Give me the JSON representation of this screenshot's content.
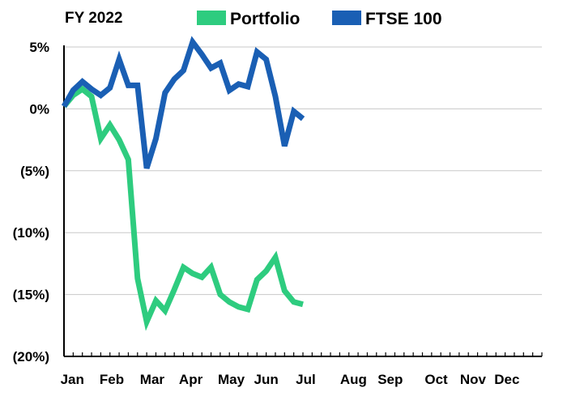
{
  "chart_data": {
    "type": "line",
    "title": "FY 2022",
    "xlabel": "",
    "ylabel": "",
    "ylim": [
      -20,
      5
    ],
    "y_ticks": [
      5,
      0,
      -5,
      -10,
      -15,
      -20
    ],
    "y_tick_labels": [
      "5%",
      "0%",
      "(5%)",
      "(10%)",
      "(15%)",
      "(20%)"
    ],
    "x_range": [
      0,
      52
    ],
    "month_labels": [
      {
        "label": "Jan",
        "week": 0.9
      },
      {
        "label": "Feb",
        "week": 5.2
      },
      {
        "label": "Mar",
        "week": 9.6
      },
      {
        "label": "Apr",
        "week": 13.8
      },
      {
        "label": "May",
        "week": 18.2
      },
      {
        "label": "Jun",
        "week": 22.0
      },
      {
        "label": "Jul",
        "week": 26.3
      },
      {
        "label": "Aug",
        "week": 31.5
      },
      {
        "label": "Sep",
        "week": 35.5
      },
      {
        "label": "Oct",
        "week": 40.5
      },
      {
        "label": "Nov",
        "week": 44.5
      },
      {
        "label": "Dec",
        "week": 48.2
      }
    ],
    "grid": true,
    "legend_position": "top",
    "series": [
      {
        "name": "Portfolio",
        "color": "#2ecc7f",
        "x": [
          0,
          1,
          2,
          3,
          4,
          5,
          6,
          7,
          8,
          9,
          10,
          11,
          12,
          13,
          14,
          15,
          16,
          17,
          18,
          19,
          20,
          21,
          22,
          23,
          24,
          25,
          26,
          27
        ],
        "y": [
          0.2,
          1.1,
          1.6,
          1.0,
          -2.4,
          -1.3,
          -2.5,
          -4.1,
          -13.7,
          -17.2,
          -15.5,
          -16.3,
          -14.6,
          -12.8,
          -13.3,
          -13.6,
          -12.8,
          -15.0,
          -15.6,
          -16.0,
          -16.2,
          -13.8,
          -13.1,
          -12.0,
          -14.7,
          -15.6,
          -15.8,
          null
        ]
      },
      {
        "name": "FTSE 100",
        "color": "#1a5fb4",
        "x": [
          0,
          1,
          2,
          3,
          4,
          5,
          6,
          7,
          8,
          9,
          10,
          11,
          12,
          13,
          14,
          15,
          16,
          17,
          18,
          19,
          20,
          21,
          22,
          23,
          24,
          25,
          26,
          27
        ],
        "y": [
          0.2,
          1.5,
          2.2,
          1.6,
          1.1,
          1.7,
          4.0,
          1.9,
          1.9,
          -4.8,
          -2.4,
          1.3,
          2.4,
          3.1,
          5.4,
          4.4,
          3.3,
          3.7,
          1.5,
          2.0,
          1.8,
          4.6,
          4.0,
          1.0,
          -3.0,
          -0.2,
          -0.8,
          null
        ]
      }
    ]
  }
}
